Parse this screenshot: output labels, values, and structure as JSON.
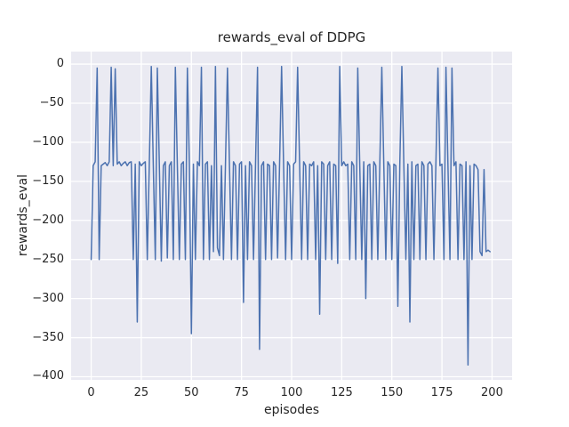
{
  "chart_data": {
    "type": "line",
    "title": "rewards_eval of DDPG",
    "xlabel": "episodes",
    "ylabel": "rewards_eval",
    "series_name": "rewards_eval",
    "x_start": 0,
    "x_step": 1,
    "values": [
      -250,
      -130,
      -125,
      -5,
      -250,
      -130,
      -128,
      -126,
      -130,
      -125,
      -4,
      -130,
      -6,
      -128,
      -125,
      -130,
      -127,
      -125,
      -130,
      -126,
      -125,
      -250,
      -128,
      -330,
      -125,
      -130,
      -127,
      -125,
      -250,
      -128,
      -3,
      -130,
      -250,
      -5,
      -128,
      -252,
      -130,
      -125,
      -248,
      -130,
      -125,
      -250,
      -4,
      -130,
      -250,
      -128,
      -125,
      -250,
      -5,
      -130,
      -345,
      -128,
      -250,
      -125,
      -130,
      -4,
      -250,
      -128,
      -125,
      -250,
      -130,
      -240,
      -3,
      -235,
      -245,
      -130,
      -250,
      -128,
      -5,
      -130,
      -250,
      -125,
      -130,
      -250,
      -128,
      -125,
      -305,
      -130,
      -250,
      -125,
      -130,
      -250,
      -128,
      -4,
      -365,
      -130,
      -125,
      -250,
      -128,
      -130,
      -250,
      -125,
      -130,
      -248,
      -128,
      -3,
      -130,
      -250,
      -125,
      -130,
      -250,
      -128,
      -125,
      -4,
      -130,
      -250,
      -125,
      -130,
      -250,
      -128,
      -130,
      -125,
      -250,
      -130,
      -320,
      -125,
      -128,
      -250,
      -130,
      -125,
      -250,
      -128,
      -130,
      -255,
      -3,
      -130,
      -125,
      -130,
      -128,
      -250,
      -125,
      -130,
      -250,
      -5,
      -130,
      -250,
      -125,
      -300,
      -130,
      -128,
      -250,
      -125,
      -130,
      -250,
      -128,
      -4,
      -130,
      -250,
      -125,
      -130,
      -250,
      -128,
      -130,
      -310,
      -125,
      -3,
      -130,
      -250,
      -128,
      -330,
      -125,
      -250,
      -130,
      -128,
      -250,
      -125,
      -130,
      -250,
      -128,
      -125,
      -130,
      -250,
      -125,
      -5,
      -130,
      -128,
      -250,
      -4,
      -130,
      -250,
      -5,
      -130,
      -125,
      -250,
      -128,
      -130,
      -250,
      -125,
      -385,
      -130,
      -250,
      -128,
      -130,
      -135,
      -240,
      -245,
      -135,
      -240,
      -238,
      -240
    ],
    "xlim": [
      -10,
      210
    ],
    "ylim": [
      -404,
      16
    ],
    "xticks": [
      0,
      25,
      50,
      75,
      100,
      125,
      150,
      175,
      200
    ],
    "yticks": [
      0,
      -50,
      -100,
      -150,
      -200,
      -250,
      -300,
      -350,
      -400
    ],
    "grid": true,
    "legend": false,
    "line_color": "#4c72b0",
    "plot_bg": "#eaeaf2",
    "grid_color": "#ffffff",
    "text_color": "#262626"
  }
}
